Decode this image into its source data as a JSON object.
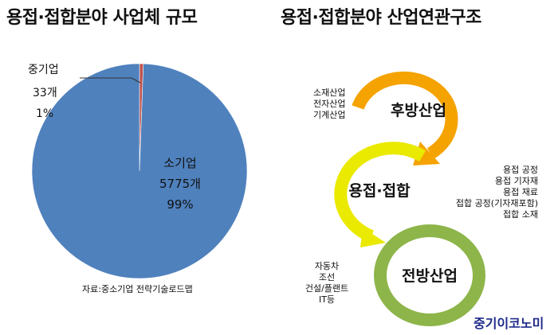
{
  "chart_data": [
    {
      "type": "pie",
      "title": "용접·접합분야 사업체 규모",
      "slices": [
        {
          "name": "중기업",
          "count_label": "33개",
          "percent_label": "1%",
          "value": 33,
          "color": "#c0504d"
        },
        {
          "name": "소기업",
          "count_label": "5775개",
          "percent_label": "99%",
          "value": 5775,
          "color": "#4f81bd"
        }
      ],
      "source": "자료:중소기업 전략기술로드맵"
    },
    {
      "type": "diagram",
      "title": "용접·접합분야 산업연관구조",
      "stages": [
        {
          "name": "후방산업",
          "color": "#f5a300",
          "examples": [
            "소재산업",
            "전자산업",
            "기계산업"
          ]
        },
        {
          "name": "용접·접합",
          "color": "#eaea00",
          "examples": [
            "용접 공정",
            "용접 기자재",
            "용접 재료",
            "접합 공정(기자재포함)",
            "접합 소재"
          ]
        },
        {
          "name": "전방산업",
          "color": "#8db54a",
          "examples": [
            "자동차",
            "조선",
            "건설/플랜트",
            "IT등"
          ]
        }
      ]
    }
  ],
  "brand": "중기이코노미"
}
